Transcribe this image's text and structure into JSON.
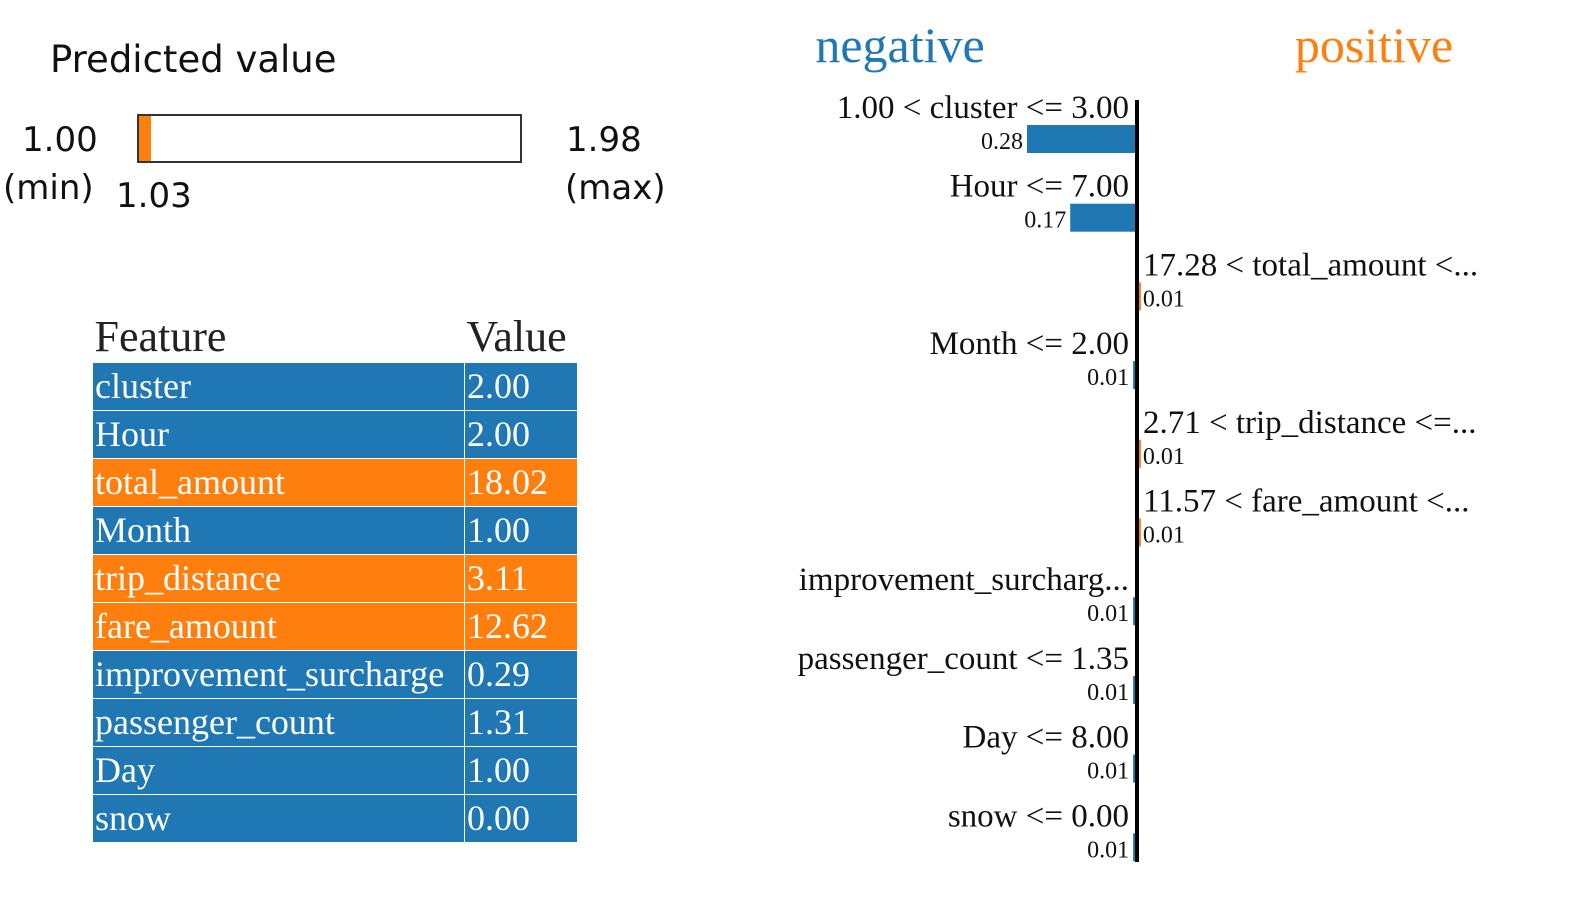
{
  "predicted": {
    "title": "Predicted value",
    "min_value": "1.00",
    "min_tag": "(min)",
    "value": "1.03",
    "max_value": "1.98",
    "max_tag": "(max)",
    "min_num": 1.0,
    "value_num": 1.03,
    "max_num": 1.98,
    "fill_color": "#ff7f0e"
  },
  "table": {
    "header_feature": "Feature",
    "header_value": "Value",
    "rows": [
      {
        "feature": "cluster",
        "value": "2.00",
        "sign": "neg"
      },
      {
        "feature": "Hour",
        "value": "2.00",
        "sign": "neg"
      },
      {
        "feature": "total_amount",
        "value": "18.02",
        "sign": "pos"
      },
      {
        "feature": "Month",
        "value": "1.00",
        "sign": "neg"
      },
      {
        "feature": "trip_distance",
        "value": "3.11",
        "sign": "pos"
      },
      {
        "feature": "fare_amount",
        "value": "12.62",
        "sign": "pos"
      },
      {
        "feature": "improvement_surcharge",
        "value": "0.29",
        "sign": "neg"
      },
      {
        "feature": "passenger_count",
        "value": "1.31",
        "sign": "neg"
      },
      {
        "feature": "Day",
        "value": "1.00",
        "sign": "neg"
      },
      {
        "feature": "snow",
        "value": "0.00",
        "sign": "neg"
      }
    ]
  },
  "chart_data": {
    "type": "bar",
    "orientation": "horizontal",
    "negative_label": "negative",
    "positive_label": "positive",
    "colors": {
      "negative": "#1f77b4",
      "positive": "#ff7f0e",
      "axis": "#000000"
    },
    "max_abs": 0.28,
    "bars": [
      {
        "label": "1.00 < cluster <= 3.00",
        "weight": -0.28,
        "weight_label": "0.28"
      },
      {
        "label": "Hour <= 7.00",
        "weight": -0.17,
        "weight_label": "0.17"
      },
      {
        "label": "17.28 < total_amount <...",
        "weight": 0.01,
        "weight_label": "0.01"
      },
      {
        "label": "Month <= 2.00",
        "weight": -0.01,
        "weight_label": "0.01"
      },
      {
        "label": "2.71 < trip_distance <=...",
        "weight": 0.01,
        "weight_label": "0.01"
      },
      {
        "label": "11.57 < fare_amount <...",
        "weight": 0.01,
        "weight_label": "0.01"
      },
      {
        "label": "improvement_surcharg...",
        "weight": -0.01,
        "weight_label": "0.01"
      },
      {
        "label": "passenger_count <= 1.35",
        "weight": -0.01,
        "weight_label": "0.01"
      },
      {
        "label": "Day <= 8.00",
        "weight": -0.01,
        "weight_label": "0.01"
      },
      {
        "label": "snow <= 0.00",
        "weight": -0.01,
        "weight_label": "0.01"
      }
    ]
  }
}
